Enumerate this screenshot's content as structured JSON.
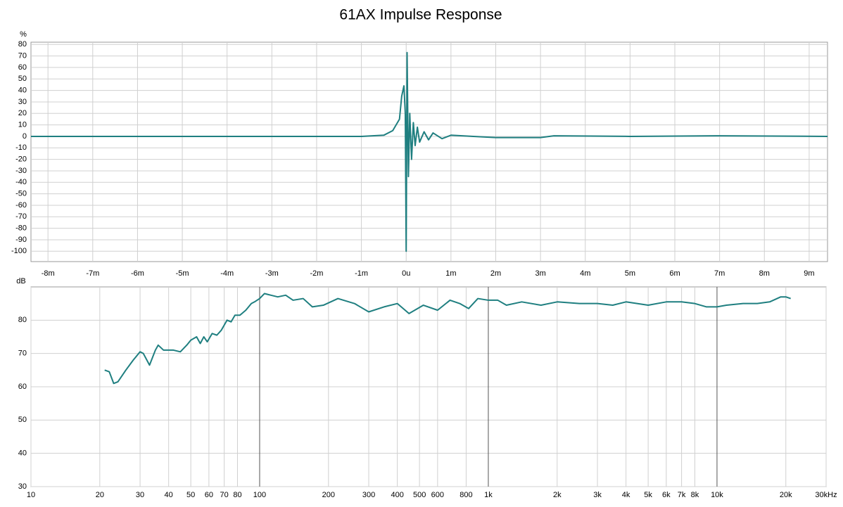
{
  "chart_data": [
    {
      "type": "line",
      "title": "61AX Impulse Response",
      "ylabel": "%",
      "color": "#1f7f80",
      "grid": true,
      "xlim": [
        -8.38,
        9.41
      ],
      "ylim": [
        -109,
        82
      ],
      "xticks": [
        {
          "value": -8,
          "label": "-8m"
        },
        {
          "value": -7,
          "label": "-7m"
        },
        {
          "value": -6,
          "label": "-6m"
        },
        {
          "value": -5,
          "label": "-5m"
        },
        {
          "value": -4,
          "label": "-4m"
        },
        {
          "value": -3,
          "label": "-3m"
        },
        {
          "value": -2,
          "label": "-2m"
        },
        {
          "value": -1,
          "label": "-1m"
        },
        {
          "value": 0,
          "label": "0u"
        },
        {
          "value": 1,
          "label": "1m"
        },
        {
          "value": 2,
          "label": "2m"
        },
        {
          "value": 3,
          "label": "3m"
        },
        {
          "value": 4,
          "label": "4m"
        },
        {
          "value": 5,
          "label": "5m"
        },
        {
          "value": 6,
          "label": "6m"
        },
        {
          "value": 7,
          "label": "7m"
        },
        {
          "value": 8,
          "label": "8m"
        },
        {
          "value": 9,
          "label": "9m"
        }
      ],
      "yticks": [
        80,
        70,
        60,
        50,
        40,
        30,
        20,
        10,
        0,
        -10,
        -20,
        -30,
        -40,
        -50,
        -60,
        -70,
        -80,
        -90,
        -100
      ],
      "x": [
        -8.38,
        -1,
        -0.5,
        -0.3,
        -0.15,
        -0.1,
        -0.05,
        -0.02,
        0,
        0.02,
        0.05,
        0.08,
        0.12,
        0.16,
        0.2,
        0.25,
        0.3,
        0.4,
        0.5,
        0.6,
        0.8,
        1.0,
        1.5,
        2,
        3,
        3.3,
        5,
        7,
        9.41
      ],
      "values": [
        0,
        0,
        1,
        5,
        15,
        35,
        44,
        20,
        -100,
        73,
        -35,
        20,
        -20,
        12,
        -8,
        8,
        -5,
        4,
        -3,
        3,
        -2,
        1,
        0,
        -1,
        -1,
        0.5,
        0,
        0.5,
        0
      ]
    },
    {
      "type": "line",
      "ylabel": "dB",
      "xscale": "log",
      "color": "#1f7f80",
      "grid": true,
      "xlim": [
        10,
        30000
      ],
      "ylim": [
        30,
        90
      ],
      "xticks": [
        10,
        20,
        30,
        40,
        50,
        60,
        70,
        80,
        100,
        200,
        300,
        400,
        500,
        600,
        800,
        {
          "value": 1000,
          "label": "1k"
        },
        {
          "value": 2000,
          "label": "2k"
        },
        {
          "value": 3000,
          "label": "3k"
        },
        {
          "value": 4000,
          "label": "4k"
        },
        {
          "value": 5000,
          "label": "5k"
        },
        {
          "value": 6000,
          "label": "6k"
        },
        {
          "value": 7000,
          "label": "7k"
        },
        {
          "value": 8000,
          "label": "8k"
        },
        {
          "value": 10000,
          "label": "10k"
        },
        {
          "value": 20000,
          "label": "20k"
        },
        {
          "value": 30000,
          "label": "30kHz"
        }
      ],
      "yticks": [
        30,
        40,
        50,
        60,
        70,
        80
      ],
      "x": [
        21,
        22,
        23,
        24,
        26,
        28,
        30,
        31,
        33,
        35,
        36,
        38,
        42,
        45,
        48,
        50,
        53,
        55,
        57,
        59,
        62,
        65,
        68,
        72,
        75,
        78,
        82,
        87,
        92,
        95,
        100,
        105,
        112,
        120,
        130,
        140,
        155,
        170,
        190,
        220,
        260,
        300,
        350,
        400,
        450,
        520,
        600,
        680,
        750,
        820,
        900,
        1000,
        1100,
        1200,
        1400,
        1700,
        2000,
        2500,
        3000,
        3500,
        4000,
        5000,
        6000,
        7000,
        8000,
        9000,
        10000,
        11000,
        13000,
        15000,
        17000,
        19000,
        20000,
        21000
      ],
      "values": [
        65,
        64.5,
        61,
        61.5,
        65,
        68,
        70.5,
        70,
        66.5,
        71,
        72.5,
        71,
        71,
        70.5,
        72.5,
        74,
        75,
        73,
        75,
        73.5,
        76,
        75.5,
        77,
        80,
        79.5,
        81.5,
        81.5,
        83,
        85,
        85.5,
        86.5,
        88,
        87.5,
        87,
        87.5,
        86,
        86.5,
        84,
        84.5,
        86.5,
        85,
        82.5,
        84,
        85,
        82,
        84.5,
        83,
        86,
        85,
        83.5,
        86.5,
        86,
        86,
        84.5,
        85.5,
        84.5,
        85.5,
        85,
        85,
        84.5,
        85.5,
        84.5,
        85.5,
        85.5,
        85,
        84,
        84,
        84.5,
        85,
        85,
        85.5,
        87,
        87,
        86.5
      ]
    }
  ]
}
